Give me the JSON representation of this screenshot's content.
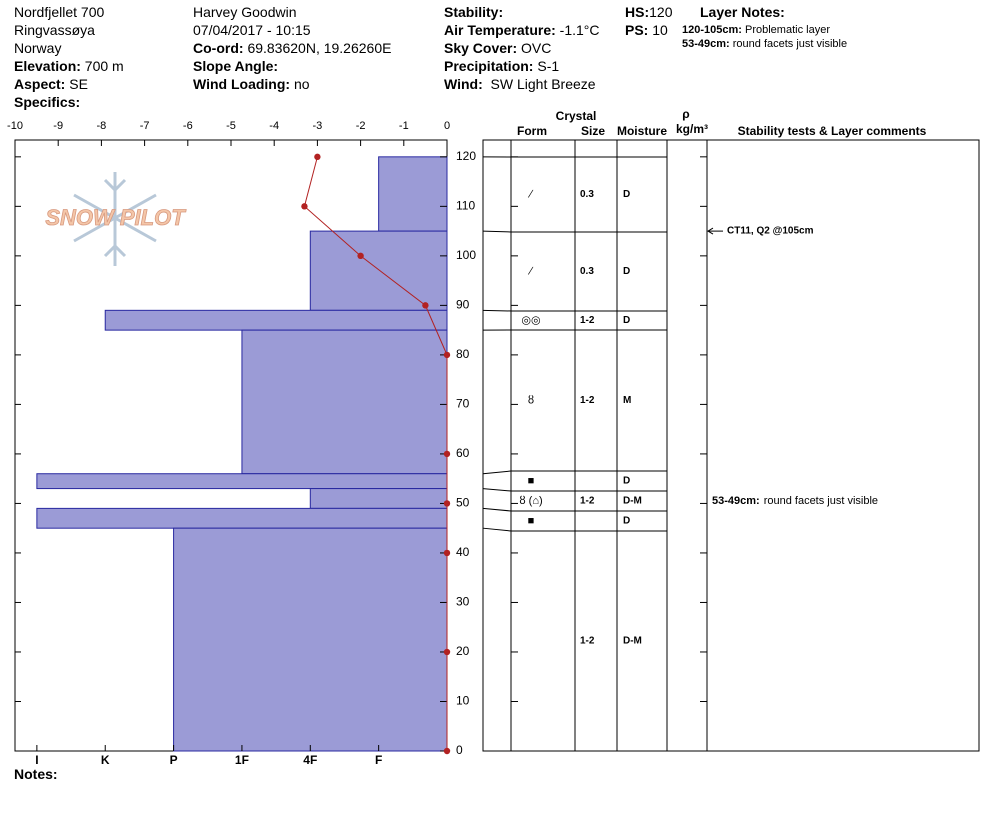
{
  "header": {
    "site": "Nordfjellet 700",
    "location": "Ringvassøya",
    "country": "Norway",
    "elevation": {
      "label": "Elevation:",
      "value": "700 m"
    },
    "aspect": {
      "label": "Aspect:",
      "value": "SE"
    },
    "specifics": {
      "label": "Specifics:"
    },
    "observer": "Harvey Goodwin",
    "datetime": "07/04/2017 - 10:15",
    "coord": {
      "label": "Co-ord:",
      "value": "69.83620N, 19.26260E"
    },
    "slope_angle": {
      "label": "Slope Angle:"
    },
    "wind_loading": {
      "label": "Wind Loading:",
      "value": "no"
    },
    "stability": {
      "label": "Stability:"
    },
    "air_temperature": {
      "label": "Air Temperature:",
      "value": "-1.1°C"
    },
    "sky_cover": {
      "label": "Sky Cover:",
      "value": "OVC"
    },
    "precipitation": {
      "label": "Precipitation:",
      "value": "S-1"
    },
    "wind": {
      "label": "Wind:",
      "value": "SW Light Breeze"
    },
    "hs": {
      "label": "HS:",
      "value": "120"
    },
    "ps": {
      "label": "PS:",
      "value": "10"
    },
    "layer_notes": {
      "label": "Layer Notes:",
      "items": [
        {
          "range": "120-105cm:",
          "text": "Problematic layer"
        },
        {
          "range": "53-49cm:",
          "text": "round facets just visible"
        }
      ]
    }
  },
  "notes_label": "Notes:",
  "logo": "SNOW PILOT",
  "table_header": {
    "crystal": "Crystal",
    "form": "Form",
    "size": "Size",
    "moisture": "Moisture",
    "density_symbol": "ρ",
    "density_unit": "kg/m³",
    "comments": "Stability tests & Layer comments"
  },
  "chart_data": {
    "type": "snow-profile",
    "xlim": [
      -10,
      0
    ],
    "xticks": [
      -10,
      -9,
      -8,
      -7,
      -6,
      -5,
      -4,
      -3,
      -2,
      -1,
      0
    ],
    "ylim": [
      0,
      123.4
    ],
    "yticks": [
      0,
      10,
      20,
      30,
      40,
      50,
      60,
      70,
      80,
      90,
      100,
      110,
      120
    ],
    "hardness_lim": [
      0,
      6.32
    ],
    "hardness_ticks": [
      {
        "value": 6,
        "label": "I"
      },
      {
        "value": 5,
        "label": "K"
      },
      {
        "value": 4,
        "label": "P"
      },
      {
        "value": 3,
        "label": "1F"
      },
      {
        "value": 2,
        "label": "4F"
      },
      {
        "value": 1,
        "label": "F"
      }
    ],
    "hardness_color": "#9b9bd6",
    "temperature": {
      "color": "#b22222",
      "depths": [
        120,
        110,
        100,
        90,
        80,
        60,
        50,
        40,
        20,
        0
      ],
      "values": [
        -3,
        -3.3,
        -2,
        -0.5,
        0,
        0,
        0,
        0,
        0,
        0
      ]
    },
    "layers": [
      {
        "top": 120,
        "bottom": 105,
        "hardness": 1,
        "form": "∕",
        "size": "0.3",
        "moisture": "D"
      },
      {
        "top": 105,
        "bottom": 89,
        "hardness": 2,
        "form": "∕",
        "size": "0.3",
        "moisture": "D"
      },
      {
        "top": 89,
        "bottom": 85,
        "hardness": 5,
        "form": "◎◎",
        "size": "1-2",
        "moisture": "D"
      },
      {
        "top": 85,
        "bottom": 56,
        "hardness": 3,
        "form": "ȣ",
        "size": "1-2",
        "moisture": "M"
      },
      {
        "top": 56,
        "bottom": 53,
        "hardness": 6,
        "form": "■",
        "moisture": "D"
      },
      {
        "top": 53,
        "bottom": 49,
        "hardness": 2,
        "form": "ȣ (⌂)",
        "size": "1-2",
        "moisture": "D-M",
        "comment": {
          "range": "53-49cm:",
          "text": "round facets just visible"
        }
      },
      {
        "top": 49,
        "bottom": 45,
        "hardness": 6,
        "form": "■",
        "moisture": "D"
      },
      {
        "top": 45,
        "bottom": 0,
        "hardness": 4,
        "size": "1-2",
        "moisture": "D-M"
      }
    ],
    "stability_tests": [
      {
        "text": "CT11, Q2 @105cm",
        "depth": 105
      }
    ]
  }
}
